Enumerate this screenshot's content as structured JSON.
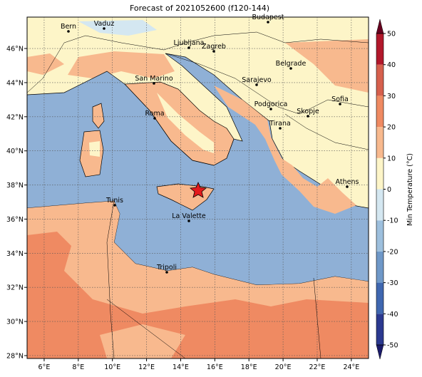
{
  "map": {
    "title": "Forecast of 2021052600 (f120-144)",
    "xticks": [
      {
        "value": 6,
        "label": "6°E"
      },
      {
        "value": 8,
        "label": "8°E"
      },
      {
        "value": 10,
        "label": "10°E"
      },
      {
        "value": 12,
        "label": "12°E"
      },
      {
        "value": 14,
        "label": "14°E"
      },
      {
        "value": 16,
        "label": "16°E"
      },
      {
        "value": 18,
        "label": "18°E"
      },
      {
        "value": 20,
        "label": "20°E"
      },
      {
        "value": 22,
        "label": "22°E"
      },
      {
        "value": 24,
        "label": "24°E"
      }
    ],
    "yticks": [
      {
        "value": 28,
        "label": "28°N"
      },
      {
        "value": 30,
        "label": "30°N"
      },
      {
        "value": 32,
        "label": "32°N"
      },
      {
        "value": 34,
        "label": "34°N"
      },
      {
        "value": 36,
        "label": "36°N"
      },
      {
        "value": 38,
        "label": "38°N"
      },
      {
        "value": 40,
        "label": "40°N"
      },
      {
        "value": 42,
        "label": "42°N"
      },
      {
        "value": 44,
        "label": "44°N"
      },
      {
        "value": 46,
        "label": "46°N"
      }
    ],
    "cities": [
      "Bern",
      "Vaduz",
      "Budapest",
      "Ljubljana",
      "Zagreb",
      "Belgrade",
      "Sarajevo",
      "San Marino",
      "Sofia",
      "Podgorica",
      "Skopje",
      "Roma",
      "Tirana",
      "Athens",
      "Tunis",
      "La Valette",
      "Tripoli"
    ],
    "colorbar": {
      "label": "Min Temperature (°C)",
      "lim": [
        -50,
        50
      ],
      "ticks": [
        -50,
        -40,
        -30,
        -20,
        -10,
        0,
        10,
        20,
        30,
        40,
        50
      ],
      "colors": [
        "#2b3990",
        "#3f67b0",
        "#6f98c8",
        "#9dbfdd",
        "#d4e7f1",
        "#fdf5c8",
        "#f8b98e",
        "#ef8a62",
        "#d6604d",
        "#b2182b"
      ],
      "under": "#1b1b6b",
      "over": "#67001f"
    }
  }
}
